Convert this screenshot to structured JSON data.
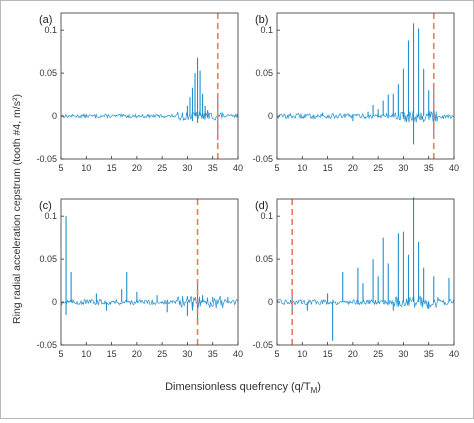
{
  "figure": {
    "ylabel": "Ring radial acceleration cepstrum (tooth #4, m/s²)",
    "xlabel": "Dimensionless quefrency (q/T",
    "xlabel_sub": "M",
    "xlabel_close": ")"
  },
  "colors": {
    "signal": "#1f8fd0",
    "marker": "#f07a5a",
    "axis": "#333333"
  },
  "chart_data": [
    {
      "type": "line",
      "panel_label": "(a)",
      "xlim": [
        5,
        40
      ],
      "ylim": [
        -0.05,
        0.12
      ],
      "xticks": [
        "5",
        "10",
        "15",
        "20",
        "25",
        "30",
        "35",
        "40"
      ],
      "yticks": [
        "-0.05",
        "0",
        "0.05",
        "0.1"
      ],
      "marker_x": 36,
      "noise_level": 0.002,
      "spikes": [
        {
          "x": 29.0,
          "y": 0.004
        },
        {
          "x": 30.0,
          "y": 0.012
        },
        {
          "x": 30.5,
          "y": 0.022
        },
        {
          "x": 31.0,
          "y": 0.033
        },
        {
          "x": 31.5,
          "y": 0.05
        },
        {
          "x": 32.0,
          "y": 0.068
        },
        {
          "x": 32.5,
          "y": 0.053
        },
        {
          "x": 33.0,
          "y": 0.026
        },
        {
          "x": 33.5,
          "y": 0.012
        },
        {
          "x": 34.0,
          "y": 0.007
        },
        {
          "x": 36.0,
          "y": 0.02
        },
        {
          "x": 36.0,
          "y": -0.028
        },
        {
          "x": 31.0,
          "y": -0.006
        },
        {
          "x": 32.0,
          "y": -0.008
        }
      ]
    },
    {
      "type": "line",
      "panel_label": "(b)",
      "xlim": [
        5,
        40
      ],
      "ylim": [
        -0.05,
        0.12
      ],
      "xticks": [
        "5",
        "10",
        "15",
        "20",
        "25",
        "30",
        "35",
        "40"
      ],
      "yticks": [
        "-0.05",
        "0",
        "0.05",
        "0.1"
      ],
      "marker_x": 36,
      "noise_level": 0.003,
      "spikes": [
        {
          "x": 23.0,
          "y": 0.005
        },
        {
          "x": 24.0,
          "y": 0.013
        },
        {
          "x": 25.0,
          "y": 0.008
        },
        {
          "x": 26.0,
          "y": 0.018
        },
        {
          "x": 27.0,
          "y": 0.025
        },
        {
          "x": 28.0,
          "y": 0.026
        },
        {
          "x": 29.0,
          "y": 0.037
        },
        {
          "x": 30.0,
          "y": 0.055
        },
        {
          "x": 31.0,
          "y": 0.088
        },
        {
          "x": 32.0,
          "y": 0.108
        },
        {
          "x": 33.0,
          "y": 0.102
        },
        {
          "x": 34.0,
          "y": 0.055
        },
        {
          "x": 35.0,
          "y": 0.03
        },
        {
          "x": 36.0,
          "y": 0.035
        },
        {
          "x": 32.0,
          "y": -0.033
        },
        {
          "x": 36.0,
          "y": -0.024
        },
        {
          "x": 20.0,
          "y": -0.006
        },
        {
          "x": 14.0,
          "y": 0.004
        }
      ]
    },
    {
      "type": "line",
      "panel_label": "(c)",
      "xlim": [
        5,
        40
      ],
      "ylim": [
        -0.05,
        0.12
      ],
      "xticks": [
        "5",
        "10",
        "15",
        "20",
        "25",
        "30",
        "35",
        "40"
      ],
      "yticks": [
        "-0.05",
        "0",
        "0.05",
        "0.1"
      ],
      "marker_x": 32,
      "noise_level": 0.003,
      "spikes": [
        {
          "x": 6.0,
          "y": 0.1
        },
        {
          "x": 6.0,
          "y": -0.015
        },
        {
          "x": 7.0,
          "y": 0.035
        },
        {
          "x": 12.0,
          "y": 0.01
        },
        {
          "x": 14.0,
          "y": -0.01
        },
        {
          "x": 17.0,
          "y": 0.015
        },
        {
          "x": 18.0,
          "y": 0.035
        },
        {
          "x": 20.0,
          "y": 0.012
        },
        {
          "x": 24.0,
          "y": 0.008
        },
        {
          "x": 26.0,
          "y": -0.012
        },
        {
          "x": 30.0,
          "y": -0.016
        },
        {
          "x": 31.0,
          "y": -0.01
        },
        {
          "x": 32.0,
          "y": 0.02
        },
        {
          "x": 32.0,
          "y": -0.025
        },
        {
          "x": 33.0,
          "y": 0.008
        },
        {
          "x": 35.0,
          "y": 0.006
        },
        {
          "x": 38.0,
          "y": 0.006
        }
      ]
    },
    {
      "type": "line",
      "panel_label": "(d)",
      "xlim": [
        5,
        40
      ],
      "ylim": [
        -0.05,
        0.12
      ],
      "xticks": [
        "5",
        "10",
        "15",
        "20",
        "25",
        "30",
        "35",
        "40"
      ],
      "yticks": [
        "-0.05",
        "0",
        "0.05",
        "0.1"
      ],
      "marker_x": 8,
      "noise_level": 0.003,
      "spikes": [
        {
          "x": 8.0,
          "y": 0.012
        },
        {
          "x": 8.0,
          "y": -0.015
        },
        {
          "x": 11.0,
          "y": -0.01
        },
        {
          "x": 15.0,
          "y": 0.01
        },
        {
          "x": 16.0,
          "y": -0.045
        },
        {
          "x": 18.0,
          "y": 0.035
        },
        {
          "x": 21.0,
          "y": 0.04
        },
        {
          "x": 22.0,
          "y": 0.022
        },
        {
          "x": 24.0,
          "y": 0.05
        },
        {
          "x": 25.0,
          "y": 0.03
        },
        {
          "x": 26.0,
          "y": 0.075
        },
        {
          "x": 27.0,
          "y": 0.045
        },
        {
          "x": 29.0,
          "y": 0.08
        },
        {
          "x": 30.0,
          "y": 0.082
        },
        {
          "x": 31.0,
          "y": 0.055
        },
        {
          "x": 32.0,
          "y": 0.122
        },
        {
          "x": 33.0,
          "y": 0.07
        },
        {
          "x": 34.0,
          "y": 0.04
        },
        {
          "x": 36.0,
          "y": 0.03
        },
        {
          "x": 39.0,
          "y": 0.028
        },
        {
          "x": 28.0,
          "y": -0.01
        },
        {
          "x": 35.0,
          "y": -0.008
        }
      ]
    }
  ]
}
